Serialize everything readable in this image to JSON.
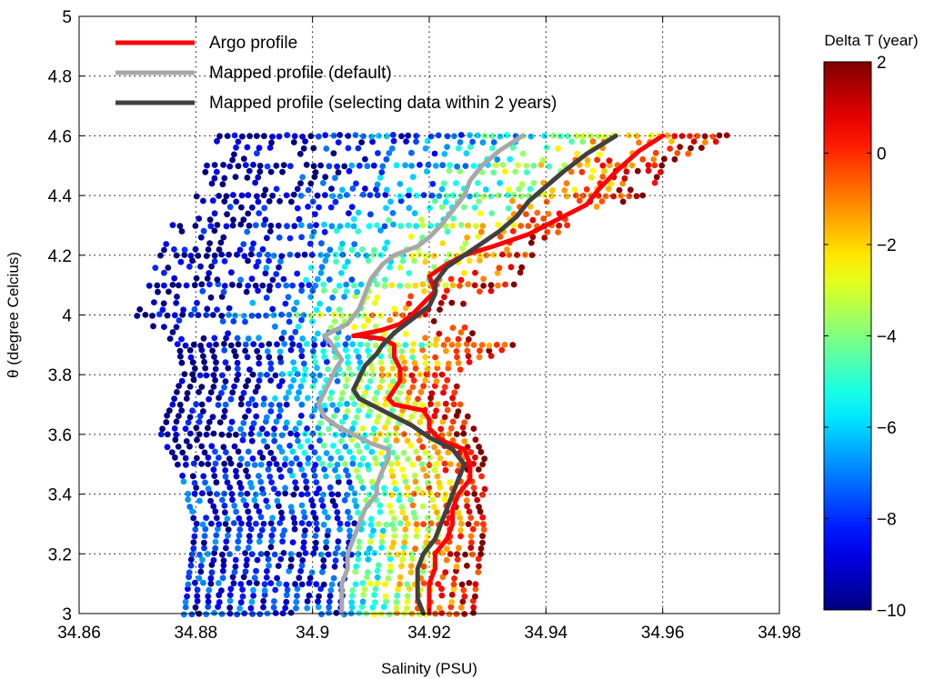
{
  "chart_data": {
    "type": "scatter",
    "xlabel": "Salinity (PSU)",
    "ylabel": "θ (degree Celcius)",
    "xlim": [
      34.86,
      34.98
    ],
    "ylim": [
      3,
      5
    ],
    "x_ticks": [
      "34.86",
      "34.88",
      "34.9",
      "34.92",
      "34.94",
      "34.96",
      "34.98"
    ],
    "y_ticks": [
      "3",
      "3.2",
      "3.4",
      "3.6",
      "3.8",
      "4",
      "4.2",
      "4.4",
      "4.6",
      "4.8",
      "5"
    ],
    "grid": true,
    "legend_position": "top-left",
    "colorbar": {
      "title": "Delta T (year)",
      "range": [
        -10,
        2
      ],
      "ticks": [
        "2",
        "0",
        "−2",
        "−4",
        "−6",
        "−8",
        "−10"
      ],
      "colormap": "jet"
    },
    "series": [
      {
        "name": "Argo profile",
        "color": "#ff0000",
        "style": "line",
        "points": [
          [
            34.92,
            3.0
          ],
          [
            34.92,
            3.05
          ],
          [
            34.92,
            3.1
          ],
          [
            34.921,
            3.15
          ],
          [
            34.921,
            3.2
          ],
          [
            34.923,
            3.25
          ],
          [
            34.924,
            3.3
          ],
          [
            34.924,
            3.35
          ],
          [
            34.925,
            3.4
          ],
          [
            34.927,
            3.45
          ],
          [
            34.927,
            3.5
          ],
          [
            34.926,
            3.55
          ],
          [
            34.922,
            3.58
          ],
          [
            34.92,
            3.62
          ],
          [
            34.92,
            3.65
          ],
          [
            34.919,
            3.68
          ],
          [
            34.914,
            3.7
          ],
          [
            34.913,
            3.72
          ],
          [
            34.915,
            3.78
          ],
          [
            34.915,
            3.82
          ],
          [
            34.914,
            3.86
          ],
          [
            34.914,
            3.9
          ],
          [
            34.912,
            3.92
          ],
          [
            34.908,
            3.93
          ],
          [
            34.907,
            3.93
          ],
          [
            34.912,
            3.95
          ],
          [
            34.915,
            3.97
          ],
          [
            34.917,
            4.0
          ],
          [
            34.919,
            4.04
          ],
          [
            34.921,
            4.08
          ],
          [
            34.92,
            4.13
          ],
          [
            34.923,
            4.17
          ],
          [
            34.926,
            4.2
          ],
          [
            34.931,
            4.23
          ],
          [
            34.937,
            4.27
          ],
          [
            34.942,
            4.32
          ],
          [
            34.947,
            4.37
          ],
          [
            34.949,
            4.42
          ],
          [
            34.952,
            4.48
          ],
          [
            34.956,
            4.55
          ],
          [
            34.96,
            4.6
          ]
        ]
      },
      {
        "name": "Mapped profile (default)",
        "color": "#a8a8a8",
        "style": "line",
        "points": [
          [
            34.905,
            3.0
          ],
          [
            34.905,
            3.05
          ],
          [
            34.905,
            3.1
          ],
          [
            34.906,
            3.15
          ],
          [
            34.906,
            3.2
          ],
          [
            34.907,
            3.25
          ],
          [
            34.908,
            3.3
          ],
          [
            34.909,
            3.35
          ],
          [
            34.911,
            3.4
          ],
          [
            34.911,
            3.43
          ],
          [
            34.912,
            3.48
          ],
          [
            34.913,
            3.52
          ],
          [
            34.913,
            3.55
          ],
          [
            34.91,
            3.57
          ],
          [
            34.907,
            3.6
          ],
          [
            34.904,
            3.63
          ],
          [
            34.902,
            3.66
          ],
          [
            34.901,
            3.7
          ],
          [
            34.902,
            3.74
          ],
          [
            34.903,
            3.78
          ],
          [
            34.904,
            3.82
          ],
          [
            34.905,
            3.85
          ],
          [
            34.904,
            3.88
          ],
          [
            34.903,
            3.91
          ],
          [
            34.902,
            3.93
          ],
          [
            34.906,
            3.97
          ],
          [
            34.908,
            4.02
          ],
          [
            34.909,
            4.07
          ],
          [
            34.91,
            4.12
          ],
          [
            34.912,
            4.17
          ],
          [
            34.914,
            4.2
          ],
          [
            34.918,
            4.23
          ],
          [
            34.92,
            4.26
          ],
          [
            34.922,
            4.3
          ],
          [
            34.924,
            4.35
          ],
          [
            34.926,
            4.4
          ],
          [
            34.927,
            4.45
          ],
          [
            34.929,
            4.5
          ],
          [
            34.932,
            4.55
          ],
          [
            34.936,
            4.6
          ]
        ]
      },
      {
        "name": "Mapped profile (selecting data within 2 years)",
        "color": "#404040",
        "style": "line",
        "points": [
          [
            34.919,
            3.0
          ],
          [
            34.918,
            3.05
          ],
          [
            34.918,
            3.1
          ],
          [
            34.918,
            3.15
          ],
          [
            34.919,
            3.2
          ],
          [
            34.921,
            3.25
          ],
          [
            34.922,
            3.3
          ],
          [
            34.923,
            3.35
          ],
          [
            34.924,
            3.4
          ],
          [
            34.925,
            3.45
          ],
          [
            34.926,
            3.5
          ],
          [
            34.924,
            3.55
          ],
          [
            34.92,
            3.59
          ],
          [
            34.917,
            3.63
          ],
          [
            34.914,
            3.66
          ],
          [
            34.911,
            3.69
          ],
          [
            34.908,
            3.72
          ],
          [
            34.907,
            3.75
          ],
          [
            34.908,
            3.79
          ],
          [
            34.909,
            3.83
          ],
          [
            34.911,
            3.87
          ],
          [
            34.912,
            3.9
          ],
          [
            34.914,
            3.94
          ],
          [
            34.916,
            3.97
          ],
          [
            34.918,
            4.0
          ],
          [
            34.92,
            4.03
          ],
          [
            34.921,
            4.07
          ],
          [
            34.921,
            4.11
          ],
          [
            34.923,
            4.16
          ],
          [
            34.926,
            4.2
          ],
          [
            34.929,
            4.24
          ],
          [
            34.932,
            4.28
          ],
          [
            34.935,
            4.33
          ],
          [
            34.937,
            4.38
          ],
          [
            34.94,
            4.43
          ],
          [
            34.943,
            4.48
          ],
          [
            34.947,
            4.54
          ],
          [
            34.952,
            4.6
          ]
        ]
      }
    ]
  }
}
